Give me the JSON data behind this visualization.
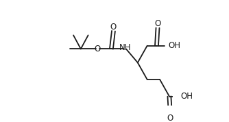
{
  "bg_color": "#ffffff",
  "line_color": "#1a1a1a",
  "line_width": 1.3,
  "font_size_atom": 8.5,
  "figsize": [
    3.34,
    1.78
  ],
  "dpi": 100,
  "xlim": [
    -0.05,
    1.05
  ],
  "ylim": [
    0.0,
    1.0
  ]
}
